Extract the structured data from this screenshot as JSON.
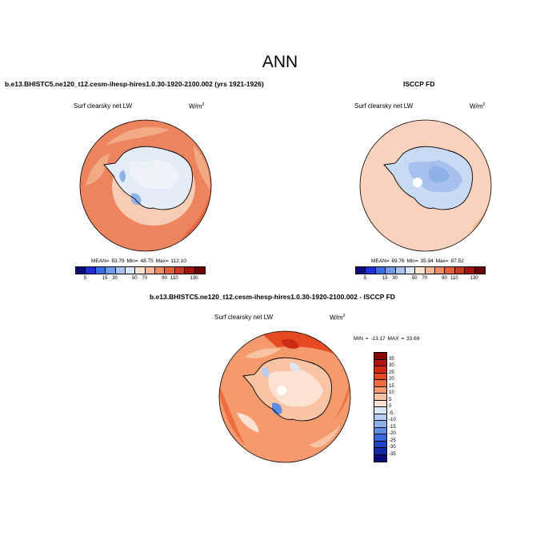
{
  "figure": {
    "title": "ANN"
  },
  "panel_1": {
    "case_title": "b.e13.BHISTC5.ne120_t12.cesm-ihesp-hires1.0.30-1920-2100.002 (yrs 1921-1926)",
    "variable": "Surf clearsky net LW",
    "units": "W/m",
    "units_exp": "2",
    "stats": "MEAN= 83.79  Min= 48.75  Max= 112.10",
    "mean": 83.79,
    "min": 48.75,
    "max": 112.1
  },
  "panel_2": {
    "case_title": "ISCCP FD",
    "variable": "Surf clearsky net LW",
    "units": "W/m",
    "units_exp": "2",
    "stats": "MEAN= 69.76  Min= 35.94  Max= 87.52",
    "mean": 69.76,
    "min": 35.94,
    "max": 87.52
  },
  "panel_3": {
    "case_title": "b.e13.BHISTC5.ne120_t12.cesm-ihesp-hires1.0.30-1920-2100.002 - ISCCP FD",
    "variable": "Surf clearsky net LW",
    "units": "W/m",
    "units_exp": "2",
    "stats": "MIN = -13.17 MAX =  33.69",
    "min": -13.17,
    "max": 33.69
  },
  "abs_colorbar": {
    "labels": [
      "5",
      "15",
      "30",
      "50",
      "70",
      "90",
      "110",
      "130"
    ],
    "colors": [
      "#0a0a7a",
      "#1f2fd6",
      "#3a6ee8",
      "#6f9ce8",
      "#a8c4ef",
      "#d8e6f7",
      "#fde2d2",
      "#f7b895",
      "#f08b63",
      "#e65f3c",
      "#cd3a22",
      "#a3140f",
      "#6b0000"
    ]
  },
  "diff_colorbar": {
    "labels": [
      "35",
      "30",
      "25",
      "20",
      "15",
      "10",
      "5",
      "0",
      "-5",
      "-10",
      "-15",
      "-20",
      "-25",
      "-30",
      "-35"
    ],
    "colors": [
      "#8b0000",
      "#b3120b",
      "#cf2b14",
      "#e64a22",
      "#f06d3f",
      "#f59a6d",
      "#f9c4a3",
      "#fde2d2",
      "#dce8f7",
      "#b5cdf0",
      "#8bb0ea",
      "#5e8ee2",
      "#3868dc",
      "#2042c8",
      "#1428a8",
      "#0a0a7a"
    ]
  }
}
